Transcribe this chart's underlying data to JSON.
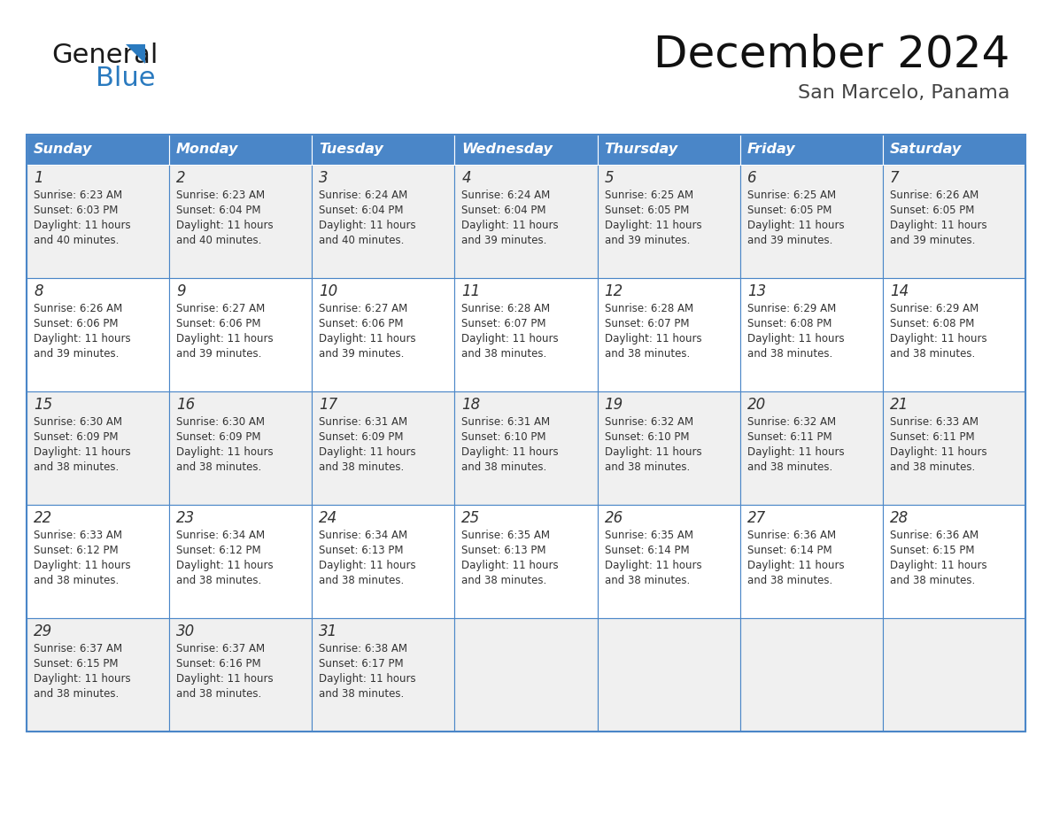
{
  "title": "December 2024",
  "subtitle": "San Marcelo, Panama",
  "header_color": "#4a86c8",
  "header_text_color": "#ffffff",
  "cell_bg_color": "#ffffff",
  "alt_cell_bg_color": "#f0f0f0",
  "border_color": "#4a86c8",
  "text_color": "#333333",
  "day_headers": [
    "Sunday",
    "Monday",
    "Tuesday",
    "Wednesday",
    "Thursday",
    "Friday",
    "Saturday"
  ],
  "weeks": [
    [
      {
        "day": 1,
        "sunrise": "6:23 AM",
        "sunset": "6:03 PM",
        "daylight_hours": 11,
        "daylight_minutes": 40
      },
      {
        "day": 2,
        "sunrise": "6:23 AM",
        "sunset": "6:04 PM",
        "daylight_hours": 11,
        "daylight_minutes": 40
      },
      {
        "day": 3,
        "sunrise": "6:24 AM",
        "sunset": "6:04 PM",
        "daylight_hours": 11,
        "daylight_minutes": 40
      },
      {
        "day": 4,
        "sunrise": "6:24 AM",
        "sunset": "6:04 PM",
        "daylight_hours": 11,
        "daylight_minutes": 39
      },
      {
        "day": 5,
        "sunrise": "6:25 AM",
        "sunset": "6:05 PM",
        "daylight_hours": 11,
        "daylight_minutes": 39
      },
      {
        "day": 6,
        "sunrise": "6:25 AM",
        "sunset": "6:05 PM",
        "daylight_hours": 11,
        "daylight_minutes": 39
      },
      {
        "day": 7,
        "sunrise": "6:26 AM",
        "sunset": "6:05 PM",
        "daylight_hours": 11,
        "daylight_minutes": 39
      }
    ],
    [
      {
        "day": 8,
        "sunrise": "6:26 AM",
        "sunset": "6:06 PM",
        "daylight_hours": 11,
        "daylight_minutes": 39
      },
      {
        "day": 9,
        "sunrise": "6:27 AM",
        "sunset": "6:06 PM",
        "daylight_hours": 11,
        "daylight_minutes": 39
      },
      {
        "day": 10,
        "sunrise": "6:27 AM",
        "sunset": "6:06 PM",
        "daylight_hours": 11,
        "daylight_minutes": 39
      },
      {
        "day": 11,
        "sunrise": "6:28 AM",
        "sunset": "6:07 PM",
        "daylight_hours": 11,
        "daylight_minutes": 38
      },
      {
        "day": 12,
        "sunrise": "6:28 AM",
        "sunset": "6:07 PM",
        "daylight_hours": 11,
        "daylight_minutes": 38
      },
      {
        "day": 13,
        "sunrise": "6:29 AM",
        "sunset": "6:08 PM",
        "daylight_hours": 11,
        "daylight_minutes": 38
      },
      {
        "day": 14,
        "sunrise": "6:29 AM",
        "sunset": "6:08 PM",
        "daylight_hours": 11,
        "daylight_minutes": 38
      }
    ],
    [
      {
        "day": 15,
        "sunrise": "6:30 AM",
        "sunset": "6:09 PM",
        "daylight_hours": 11,
        "daylight_minutes": 38
      },
      {
        "day": 16,
        "sunrise": "6:30 AM",
        "sunset": "6:09 PM",
        "daylight_hours": 11,
        "daylight_minutes": 38
      },
      {
        "day": 17,
        "sunrise": "6:31 AM",
        "sunset": "6:09 PM",
        "daylight_hours": 11,
        "daylight_minutes": 38
      },
      {
        "day": 18,
        "sunrise": "6:31 AM",
        "sunset": "6:10 PM",
        "daylight_hours": 11,
        "daylight_minutes": 38
      },
      {
        "day": 19,
        "sunrise": "6:32 AM",
        "sunset": "6:10 PM",
        "daylight_hours": 11,
        "daylight_minutes": 38
      },
      {
        "day": 20,
        "sunrise": "6:32 AM",
        "sunset": "6:11 PM",
        "daylight_hours": 11,
        "daylight_minutes": 38
      },
      {
        "day": 21,
        "sunrise": "6:33 AM",
        "sunset": "6:11 PM",
        "daylight_hours": 11,
        "daylight_minutes": 38
      }
    ],
    [
      {
        "day": 22,
        "sunrise": "6:33 AM",
        "sunset": "6:12 PM",
        "daylight_hours": 11,
        "daylight_minutes": 38
      },
      {
        "day": 23,
        "sunrise": "6:34 AM",
        "sunset": "6:12 PM",
        "daylight_hours": 11,
        "daylight_minutes": 38
      },
      {
        "day": 24,
        "sunrise": "6:34 AM",
        "sunset": "6:13 PM",
        "daylight_hours": 11,
        "daylight_minutes": 38
      },
      {
        "day": 25,
        "sunrise": "6:35 AM",
        "sunset": "6:13 PM",
        "daylight_hours": 11,
        "daylight_minutes": 38
      },
      {
        "day": 26,
        "sunrise": "6:35 AM",
        "sunset": "6:14 PM",
        "daylight_hours": 11,
        "daylight_minutes": 38
      },
      {
        "day": 27,
        "sunrise": "6:36 AM",
        "sunset": "6:14 PM",
        "daylight_hours": 11,
        "daylight_minutes": 38
      },
      {
        "day": 28,
        "sunrise": "6:36 AM",
        "sunset": "6:15 PM",
        "daylight_hours": 11,
        "daylight_minutes": 38
      }
    ],
    [
      {
        "day": 29,
        "sunrise": "6:37 AM",
        "sunset": "6:15 PM",
        "daylight_hours": 11,
        "daylight_minutes": 38
      },
      {
        "day": 30,
        "sunrise": "6:37 AM",
        "sunset": "6:16 PM",
        "daylight_hours": 11,
        "daylight_minutes": 38
      },
      {
        "day": 31,
        "sunrise": "6:38 AM",
        "sunset": "6:17 PM",
        "daylight_hours": 11,
        "daylight_minutes": 38
      },
      null,
      null,
      null,
      null
    ]
  ],
  "logo_color_general": "#1a1a1a",
  "logo_color_blue": "#2a7abf"
}
